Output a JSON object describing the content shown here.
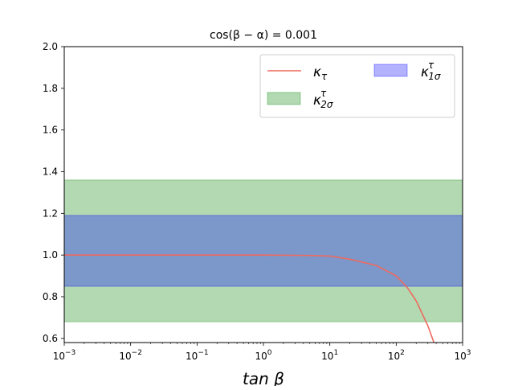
{
  "chart_data": {
    "type": "line",
    "title": "cos(β − α) = 0.001",
    "xlabel": "tan β",
    "ylabel": "",
    "xscale": "log",
    "xlim": [
      0.001,
      1000
    ],
    "ylim": [
      0.58,
      2.0
    ],
    "grid": false,
    "legend_position": "top-right",
    "x_ticks": [
      {
        "value": 0.001,
        "base": "10",
        "exp": "−3"
      },
      {
        "value": 0.01,
        "base": "10",
        "exp": "−2"
      },
      {
        "value": 0.1,
        "base": "10",
        "exp": "−1"
      },
      {
        "value": 1,
        "base": "10",
        "exp": "0"
      },
      {
        "value": 10,
        "base": "10",
        "exp": "1"
      },
      {
        "value": 100,
        "base": "10",
        "exp": "2"
      },
      {
        "value": 1000,
        "base": "10",
        "exp": "3"
      }
    ],
    "y_ticks": [
      {
        "value": 0.6,
        "label": "0.6"
      },
      {
        "value": 0.8,
        "label": "0.8"
      },
      {
        "value": 1.0,
        "label": "1.0"
      },
      {
        "value": 1.2,
        "label": "1.2"
      },
      {
        "value": 1.4,
        "label": "1.4"
      },
      {
        "value": 1.6,
        "label": "1.6"
      },
      {
        "value": 1.8,
        "label": "1.8"
      },
      {
        "value": 2.0,
        "label": "2.0"
      }
    ],
    "bands": [
      {
        "name": "κ_{2σ}^τ",
        "main": "κ",
        "sub": "2σ",
        "sup": "τ",
        "lower": 0.68,
        "upper": 1.36,
        "color": "#008000",
        "opacity": 0.3
      },
      {
        "name": "κ_{1σ}^τ",
        "main": "κ",
        "sub": "1σ",
        "sup": "τ",
        "lower": 0.85,
        "upper": 1.19,
        "color": "#0000ff",
        "opacity": 0.3
      }
    ],
    "series": [
      {
        "name": "κ_τ",
        "main": "κ",
        "sub": "τ",
        "color": "#ee6a5f",
        "x": [
          0.001,
          0.01,
          0.1,
          1,
          5,
          10,
          20,
          50,
          100,
          150,
          200,
          300,
          400
        ],
        "y": [
          1.0,
          1.0,
          1.0,
          1.0,
          0.998,
          0.995,
          0.98,
          0.95,
          0.9,
          0.84,
          0.78,
          0.66,
          0.55
        ]
      }
    ]
  }
}
